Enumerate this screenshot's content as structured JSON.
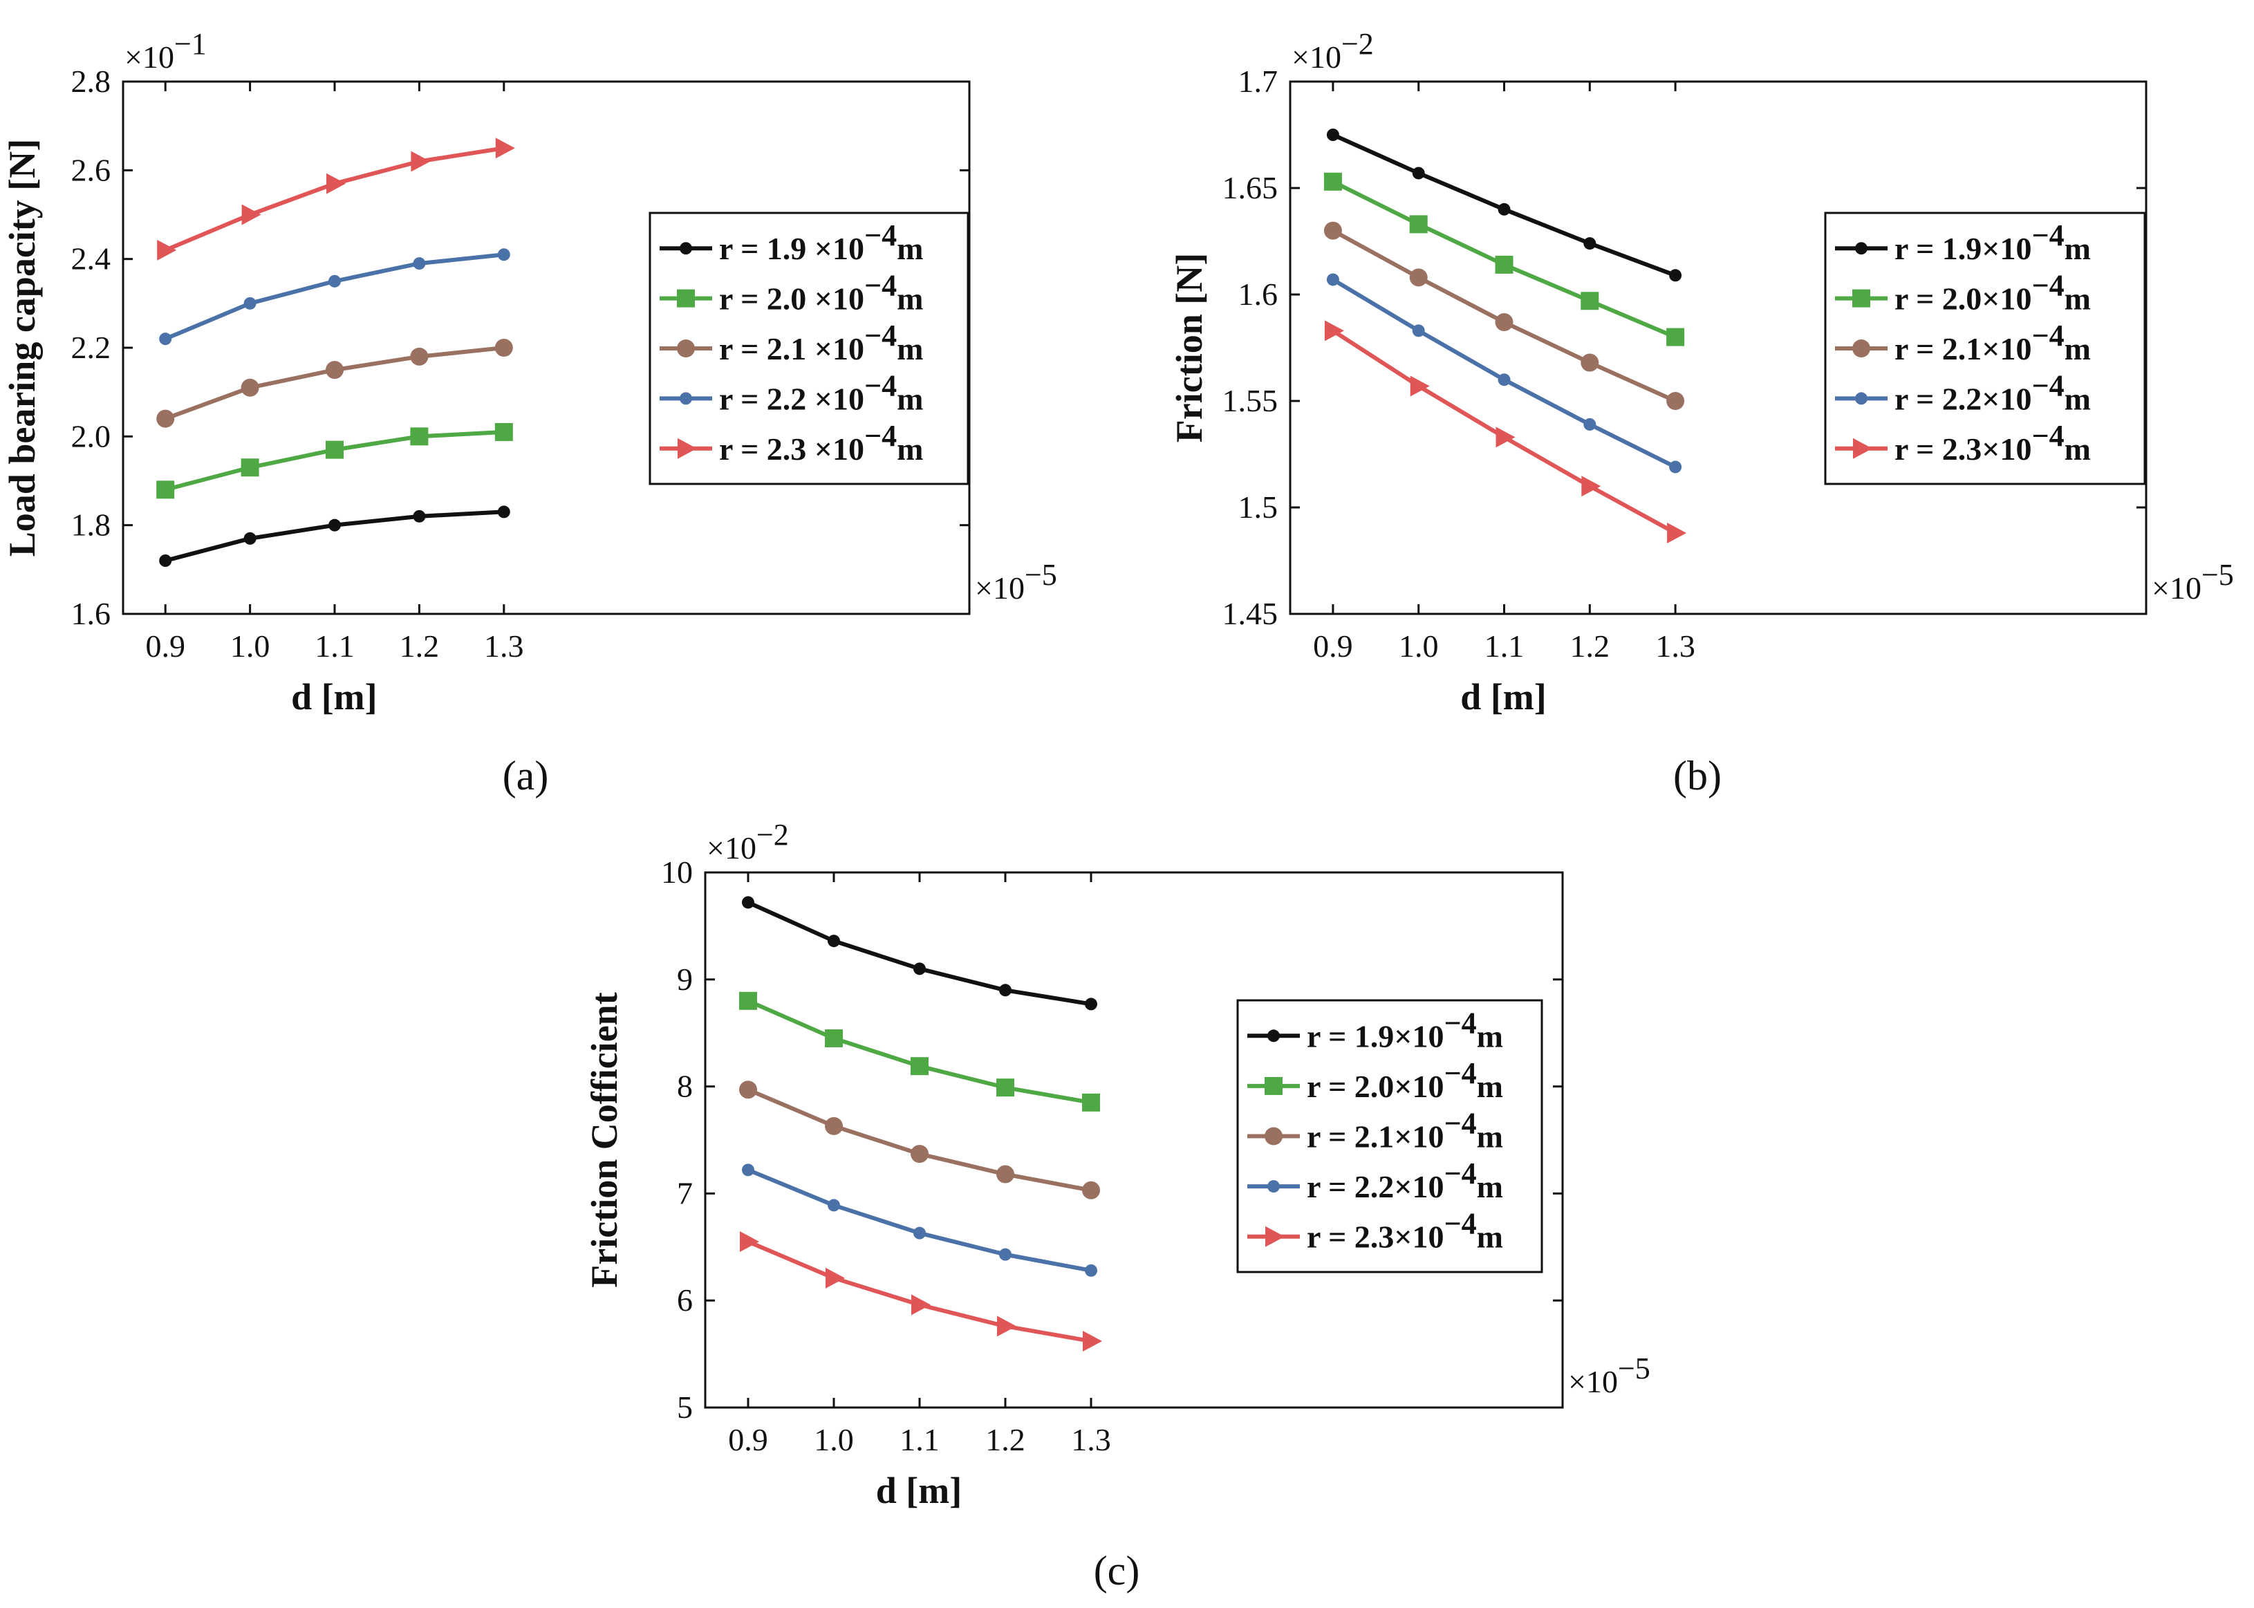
{
  "chart_data": [
    {
      "type": "line",
      "panel_label": "(a)",
      "ylabel": "Load bearing capacity [N]",
      "xlabel": "d [m]",
      "y_multiplier": "×10",
      "y_exp": "−1",
      "x_multiplier": "×10",
      "x_exp": "−5",
      "xlim": [
        0.85,
        1.85
      ],
      "ylim": [
        1.6,
        2.8
      ],
      "xticks": [
        0.9,
        1.0,
        1.1,
        1.2,
        1.3
      ],
      "xtick_labels": [
        "0.9",
        "1.0",
        "1.1",
        "1.2",
        "1.3"
      ],
      "yticks": [
        1.6,
        1.8,
        2.0,
        2.2,
        2.4,
        2.6,
        2.8
      ],
      "ytick_labels": [
        "1.6",
        "1.8",
        "2.0",
        "2.2",
        "2.4",
        "2.6",
        "2.8"
      ],
      "x": [
        0.9,
        1.0,
        1.1,
        1.2,
        1.3
      ],
      "legend_position": "center-right",
      "series": [
        {
          "prefix": "r = 1.9 ×10",
          "exp": "−4",
          "suffix": "m",
          "color": "#111111",
          "marker": "dot",
          "values": [
            1.72,
            1.77,
            1.8,
            1.82,
            1.83
          ]
        },
        {
          "prefix": "r = 2.0 ×10",
          "exp": "−4",
          "suffix": "m",
          "color": "#4ea844",
          "marker": "square",
          "values": [
            1.88,
            1.93,
            1.97,
            2.0,
            2.01
          ]
        },
        {
          "prefix": "r = 2.1 ×10",
          "exp": "−4",
          "suffix": "m",
          "color": "#9a7060",
          "marker": "circle",
          "values": [
            2.04,
            2.11,
            2.15,
            2.18,
            2.2
          ]
        },
        {
          "prefix": "r = 2.2 ×10",
          "exp": "−4",
          "suffix": "m",
          "color": "#4a72a8",
          "marker": "dot",
          "values": [
            2.22,
            2.3,
            2.35,
            2.39,
            2.41
          ]
        },
        {
          "prefix": "r = 2.3 ×10",
          "exp": "−4",
          "suffix": "m",
          "color": "#e05555",
          "marker": "triangle",
          "values": [
            2.42,
            2.5,
            2.57,
            2.62,
            2.65
          ]
        }
      ]
    },
    {
      "type": "line",
      "panel_label": "(b)",
      "ylabel": "Friction [N]",
      "xlabel": "d [m]",
      "y_multiplier": "×10",
      "y_exp": "−2",
      "x_multiplier": "×10",
      "x_exp": "−5",
      "xlim": [
        0.85,
        1.85
      ],
      "ylim": [
        1.45,
        1.7
      ],
      "xticks": [
        0.9,
        1.0,
        1.1,
        1.2,
        1.3
      ],
      "xtick_labels": [
        "0.9",
        "1.0",
        "1.1",
        "1.2",
        "1.3"
      ],
      "yticks": [
        1.45,
        1.5,
        1.55,
        1.6,
        1.65,
        1.7
      ],
      "ytick_labels": [
        "1.45",
        "1.5",
        "1.55",
        "1.6",
        "1.65",
        "1.7"
      ],
      "x": [
        0.9,
        1.0,
        1.1,
        1.2,
        1.3
      ],
      "legend_position": "center-right",
      "series": [
        {
          "prefix": "r = 1.9×10",
          "exp": "−4",
          "suffix": "m",
          "color": "#111111",
          "marker": "dot",
          "values": [
            1.675,
            1.657,
            1.64,
            1.624,
            1.609
          ]
        },
        {
          "prefix": "r = 2.0×10",
          "exp": "−4",
          "suffix": "m",
          "color": "#4ea844",
          "marker": "square",
          "values": [
            1.653,
            1.633,
            1.614,
            1.597,
            1.58
          ]
        },
        {
          "prefix": "r = 2.1×10",
          "exp": "−4",
          "suffix": "m",
          "color": "#9a7060",
          "marker": "circle",
          "values": [
            1.63,
            1.608,
            1.587,
            1.568,
            1.55
          ]
        },
        {
          "prefix": "r = 2.2×10",
          "exp": "−4",
          "suffix": "m",
          "color": "#4a72a8",
          "marker": "dot",
          "values": [
            1.607,
            1.583,
            1.56,
            1.539,
            1.519
          ]
        },
        {
          "prefix": "r = 2.3×10",
          "exp": "−4",
          "suffix": "m",
          "color": "#e05555",
          "marker": "triangle",
          "values": [
            1.583,
            1.557,
            1.533,
            1.51,
            1.488
          ]
        }
      ]
    },
    {
      "type": "line",
      "panel_label": "(c)",
      "ylabel": "Friction Cofficient",
      "xlabel": "d [m]",
      "y_multiplier": "×10",
      "y_exp": "−2",
      "x_multiplier": "×10",
      "x_exp": "−5",
      "xlim": [
        0.85,
        1.85
      ],
      "ylim": [
        5,
        10
      ],
      "xticks": [
        0.9,
        1.0,
        1.1,
        1.2,
        1.3
      ],
      "xtick_labels": [
        "0.9",
        "1.0",
        "1.1",
        "1.2",
        "1.3"
      ],
      "yticks": [
        5,
        6,
        7,
        8,
        9,
        10
      ],
      "ytick_labels": [
        "5",
        "6",
        "7",
        "8",
        "9",
        "10"
      ],
      "x": [
        0.9,
        1.0,
        1.1,
        1.2,
        1.3
      ],
      "legend_position": "center-right",
      "series": [
        {
          "prefix": "r = 1.9×10",
          "exp": "−4",
          "suffix": "m",
          "color": "#111111",
          "marker": "dot",
          "values": [
            9.72,
            9.36,
            9.1,
            8.9,
            8.77
          ]
        },
        {
          "prefix": "r = 2.0×10",
          "exp": "−4",
          "suffix": "m",
          "color": "#4ea844",
          "marker": "square",
          "values": [
            8.8,
            8.45,
            8.19,
            7.99,
            7.85
          ]
        },
        {
          "prefix": "r = 2.1×10",
          "exp": "−4",
          "suffix": "m",
          "color": "#9a7060",
          "marker": "circle",
          "values": [
            7.97,
            7.63,
            7.37,
            7.18,
            7.03
          ]
        },
        {
          "prefix": "r = 2.2×10",
          "exp": "−4",
          "suffix": "m",
          "color": "#4a72a8",
          "marker": "dot",
          "values": [
            7.22,
            6.89,
            6.63,
            6.43,
            6.28
          ]
        },
        {
          "prefix": "r = 2.3×10",
          "exp": "−4",
          "suffix": "m",
          "color": "#e05555",
          "marker": "triangle",
          "values": [
            6.55,
            6.21,
            5.96,
            5.76,
            5.62
          ]
        }
      ]
    }
  ]
}
